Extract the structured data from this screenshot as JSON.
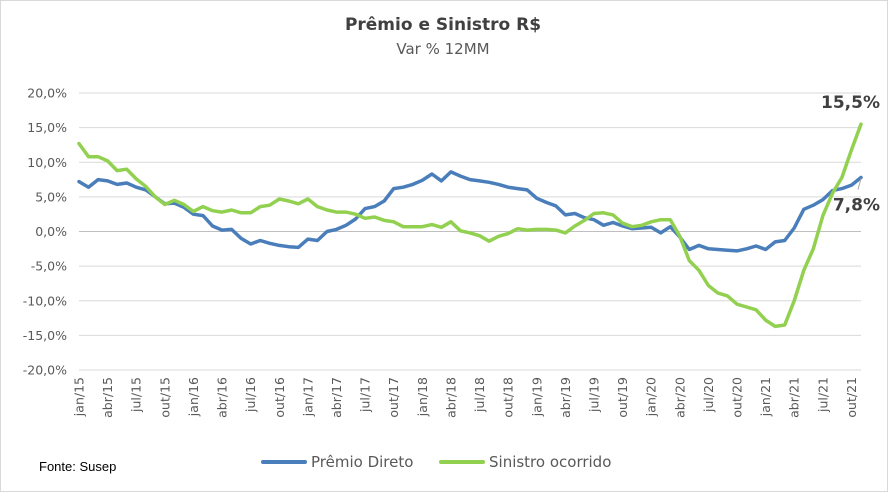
{
  "chart_data": {
    "type": "line",
    "title": "Prêmio e Sinistro R$",
    "subtitle": "Var % 12MM",
    "source": "Fonte: Susep",
    "ylim": [
      -20,
      20
    ],
    "yticks": [
      -20,
      -15,
      -10,
      -5,
      0,
      5,
      10,
      15,
      20
    ],
    "ytick_labels": [
      "-20,0%",
      "-15,0%",
      "-10,0%",
      "-5,0%",
      "0,0%",
      "5,0%",
      "10,0%",
      "15,0%",
      "20,0%"
    ],
    "grid": true,
    "legend_position": "bottom",
    "x": [
      "jan/15",
      "fev/15",
      "mar/15",
      "abr/15",
      "mai/15",
      "jun/15",
      "jul/15",
      "ago/15",
      "set/15",
      "out/15",
      "nov/15",
      "dez/15",
      "jan/16",
      "fev/16",
      "mar/16",
      "abr/16",
      "mai/16",
      "jun/16",
      "jul/16",
      "ago/16",
      "set/16",
      "out/16",
      "nov/16",
      "dez/16",
      "jan/17",
      "fev/17",
      "mar/17",
      "abr/17",
      "mai/17",
      "jun/17",
      "jul/17",
      "ago/17",
      "set/17",
      "out/17",
      "nov/17",
      "dez/17",
      "jan/18",
      "fev/18",
      "mar/18",
      "abr/18",
      "mai/18",
      "jun/18",
      "jul/18",
      "ago/18",
      "set/18",
      "out/18",
      "nov/18",
      "dez/18",
      "jan/19",
      "fev/19",
      "mar/19",
      "abr/19",
      "mai/19",
      "jun/19",
      "jul/19",
      "ago/19",
      "set/19",
      "out/19",
      "nov/19",
      "dez/19",
      "jan/20",
      "fev/20",
      "mar/20",
      "abr/20",
      "mai/20",
      "jun/20",
      "jul/20",
      "ago/20",
      "set/20",
      "out/20",
      "nov/20",
      "dez/20",
      "jan/21",
      "fev/21",
      "mar/21",
      "abr/21",
      "mai/21",
      "jun/21",
      "jul/21",
      "ago/21",
      "set/21",
      "out/21",
      "nov/21"
    ],
    "x_tick_labels": [
      "jan/15",
      "abr/15",
      "jul/15",
      "out/15",
      "jan/16",
      "abr/16",
      "jul/16",
      "out/16",
      "jan/17",
      "abr/17",
      "jul/17",
      "out/17",
      "jan/18",
      "abr/18",
      "jul/18",
      "out/18",
      "jan/19",
      "abr/19",
      "jul/19",
      "out/19",
      "jan/20",
      "abr/20",
      "jul/20",
      "out/20",
      "jan/21",
      "abr/21",
      "jul/21",
      "out/21"
    ],
    "series": [
      {
        "name": "Prêmio Direto",
        "color": "#4a7ebb",
        "values": [
          7.2,
          6.4,
          7.5,
          7.3,
          6.8,
          7.0,
          6.4,
          6.0,
          5.0,
          4.0,
          4.1,
          3.5,
          2.5,
          2.3,
          0.8,
          0.2,
          0.3,
          -1.0,
          -1.8,
          -1.3,
          -1.7,
          -2.0,
          -2.2,
          -2.3,
          -1.1,
          -1.3,
          0.0,
          0.3,
          0.9,
          1.8,
          3.3,
          3.6,
          4.4,
          6.2,
          6.4,
          6.8,
          7.4,
          8.3,
          7.3,
          8.6,
          8.0,
          7.5,
          7.3,
          7.1,
          6.8,
          6.4,
          6.2,
          6.0,
          4.8,
          4.2,
          3.7,
          2.4,
          2.6,
          2.0,
          1.7,
          0.9,
          1.3,
          0.8,
          0.4,
          0.5,
          0.6,
          -0.2,
          0.7,
          -0.8,
          -2.6,
          -2.0,
          -2.5,
          -2.6,
          -2.7,
          -2.8,
          -2.5,
          -2.1,
          -2.6,
          -1.5,
          -1.3,
          0.5,
          3.2,
          3.8,
          4.6,
          5.9,
          6.2,
          6.7,
          7.8
        ]
      },
      {
        "name": "Sinistro ocorrido",
        "color": "#92d050",
        "values": [
          12.7,
          10.8,
          10.8,
          10.2,
          8.8,
          9.0,
          7.6,
          6.5,
          5.0,
          3.9,
          4.5,
          3.9,
          2.9,
          3.6,
          3.0,
          2.8,
          3.1,
          2.7,
          2.7,
          3.6,
          3.8,
          4.7,
          4.4,
          4.0,
          4.7,
          3.6,
          3.1,
          2.8,
          2.8,
          2.5,
          1.9,
          2.1,
          1.6,
          1.4,
          0.7,
          0.7,
          0.7,
          1.0,
          0.6,
          1.4,
          0.1,
          -0.2,
          -0.6,
          -1.4,
          -0.7,
          -0.3,
          0.4,
          0.2,
          0.3,
          0.3,
          0.2,
          -0.2,
          0.8,
          1.6,
          2.6,
          2.7,
          2.4,
          1.2,
          0.7,
          0.9,
          1.4,
          1.7,
          1.7,
          -0.7,
          -4.2,
          -5.6,
          -7.8,
          -8.9,
          -9.3,
          -10.5,
          -10.9,
          -11.3,
          -12.8,
          -13.7,
          -13.5,
          -10.0,
          -5.6,
          -2.5,
          2.3,
          5.5,
          7.8,
          11.8,
          15.5
        ]
      }
    ],
    "annotations": [
      {
        "series": "Sinistro ocorrido",
        "text": "15,5%",
        "value": 15.5
      },
      {
        "series": "Prêmio Direto",
        "text": "7,8%",
        "value": 7.8
      }
    ]
  }
}
